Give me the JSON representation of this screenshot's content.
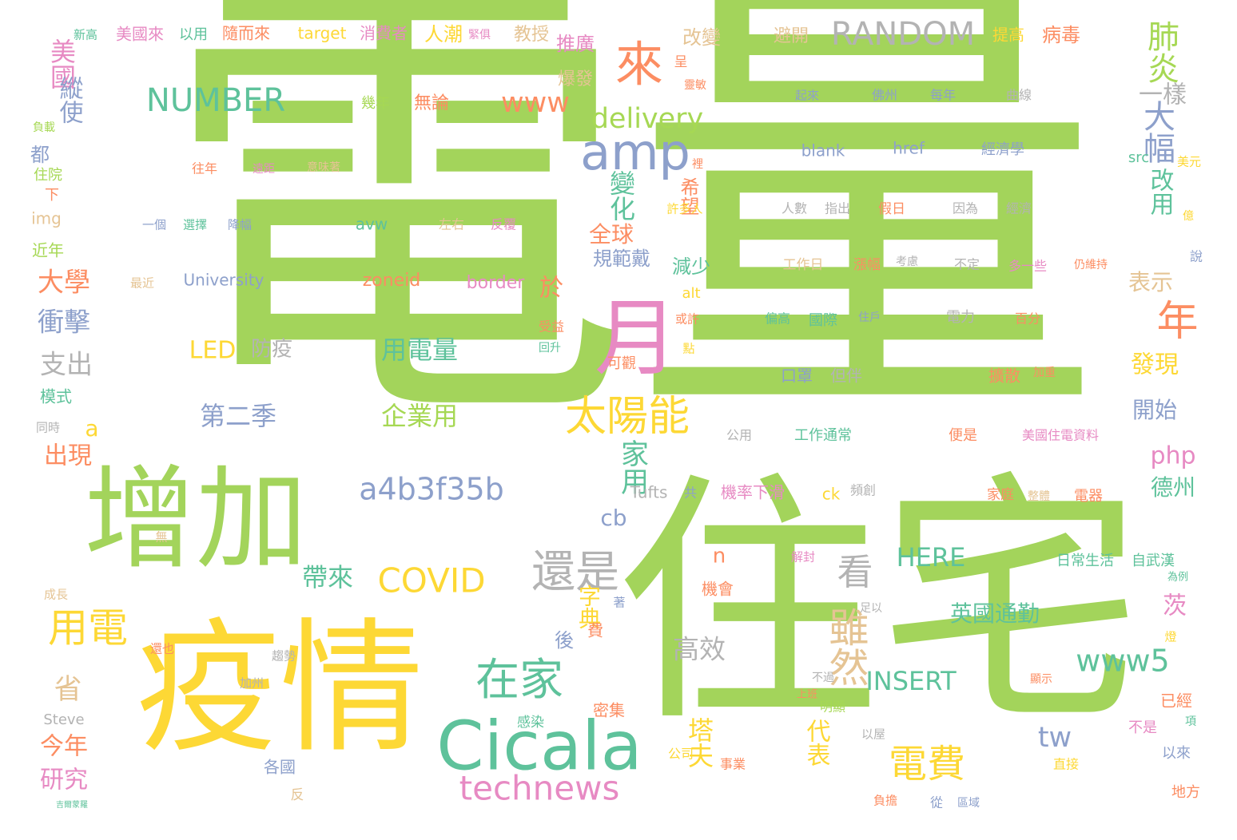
{
  "colors": {
    "green": "#a3d45b",
    "yellow": "#fdd835",
    "teal": "#5ec29b",
    "blue": "#8da0cb",
    "pink": "#e78ac3",
    "orange": "#fc8d62",
    "gray": "#b3b3b3",
    "tan": "#e5c494",
    "lime": "#a6d854"
  },
  "words": [
    {
      "text": "電量",
      "color": "green"
    },
    {
      "text": "住宅",
      "color": "green"
    },
    {
      "text": "疫情",
      "color": "yellow"
    },
    {
      "text": "增加",
      "color": "green"
    },
    {
      "text": "月",
      "color": "pink"
    },
    {
      "text": "Cicala",
      "color": "teal"
    },
    {
      "text": "amp",
      "color": "blue"
    },
    {
      "text": "太陽能",
      "color": "yellow"
    },
    {
      "text": "來",
      "color": "orange"
    },
    {
      "text": "在家",
      "color": "teal"
    },
    {
      "text": "還是",
      "color": "gray"
    },
    {
      "text": "電費",
      "color": "yellow"
    },
    {
      "text": "technews",
      "color": "pink"
    },
    {
      "text": "www5",
      "color": "teal"
    },
    {
      "text": "年",
      "color": "orange"
    },
    {
      "text": "用電",
      "color": "yellow"
    },
    {
      "text": "RANDOM",
      "color": "gray"
    },
    {
      "text": "COVID",
      "color": "yellow"
    },
    {
      "text": "a4b3f35b",
      "color": "blue"
    },
    {
      "text": "雖然",
      "color": "tan"
    },
    {
      "text": "大幅",
      "color": "blue"
    },
    {
      "text": "肺炎",
      "color": "lime"
    },
    {
      "text": "看",
      "color": "gray"
    },
    {
      "text": "NUMBER",
      "color": "teal"
    },
    {
      "text": "www",
      "color": "orange"
    },
    {
      "text": "delivery",
      "color": "lime"
    },
    {
      "text": "INSERT",
      "color": "teal"
    },
    {
      "text": "HERE",
      "color": "teal"
    },
    {
      "text": "家用",
      "color": "teal"
    },
    {
      "text": "變化",
      "color": "teal"
    },
    {
      "text": "高效",
      "color": "gray"
    },
    {
      "text": "tw",
      "color": "blue"
    },
    {
      "text": "塔夫",
      "color": "yellow"
    },
    {
      "text": "帶來",
      "color": "teal"
    },
    {
      "text": "第二季",
      "color": "blue"
    },
    {
      "text": "企業用",
      "color": "lime"
    },
    {
      "text": "用電量",
      "color": "teal"
    },
    {
      "text": "LED",
      "color": "yellow"
    },
    {
      "text": "防疫",
      "color": "gray"
    },
    {
      "text": "美國",
      "color": "pink"
    },
    {
      "text": "大學",
      "color": "orange"
    },
    {
      "text": "衝擊",
      "color": "blue"
    },
    {
      "text": "支出",
      "color": "gray"
    },
    {
      "text": "縱使",
      "color": "blue"
    },
    {
      "text": "出現",
      "color": "orange"
    },
    {
      "text": "今年",
      "color": "orange"
    },
    {
      "text": "研究",
      "color": "pink"
    },
    {
      "text": "省",
      "color": "tan"
    },
    {
      "text": "php",
      "color": "pink"
    },
    {
      "text": "德州",
      "color": "teal"
    },
    {
      "text": "開始",
      "color": "blue"
    },
    {
      "text": "發現",
      "color": "yellow"
    },
    {
      "text": "表示",
      "color": "tan"
    },
    {
      "text": "改用",
      "color": "teal"
    },
    {
      "text": "一樣",
      "color": "gray"
    },
    {
      "text": "英國通勤",
      "color": "teal"
    },
    {
      "text": "代表",
      "color": "yellow"
    },
    {
      "text": "茨",
      "color": "pink"
    },
    {
      "text": "全球",
      "color": "orange"
    },
    {
      "text": "規範戴",
      "color": "blue"
    },
    {
      "text": "減少",
      "color": "teal"
    },
    {
      "text": "於",
      "color": "orange"
    },
    {
      "text": "字典",
      "color": "yellow"
    },
    {
      "text": "後",
      "color": "blue"
    },
    {
      "text": "希望",
      "color": "orange"
    },
    {
      "text": "推廣",
      "color": "pink"
    },
    {
      "text": "爆發",
      "color": "tan"
    },
    {
      "text": "cb",
      "color": "blue"
    },
    {
      "text": "n",
      "color": "orange"
    },
    {
      "text": "a",
      "color": "yellow"
    },
    {
      "text": "改變",
      "color": "tan"
    },
    {
      "text": "避開",
      "color": "tan"
    },
    {
      "text": "病毒",
      "color": "orange"
    },
    {
      "text": "提高",
      "color": "yellow"
    },
    {
      "text": "人潮",
      "color": "yellow"
    },
    {
      "text": "教授",
      "color": "tan"
    },
    {
      "text": "target",
      "color": "yellow"
    },
    {
      "text": "消費者",
      "color": "pink"
    },
    {
      "text": "隨而來",
      "color": "orange"
    },
    {
      "text": "美國來",
      "color": "pink"
    },
    {
      "text": "以用",
      "color": "teal"
    },
    {
      "text": "新高",
      "color": "teal"
    },
    {
      "text": "緊俱",
      "color": "pink"
    },
    {
      "text": "都",
      "color": "blue"
    },
    {
      "text": "無論",
      "color": "orange"
    },
    {
      "text": "幾年",
      "color": "lime"
    },
    {
      "text": "呈",
      "color": "orange"
    },
    {
      "text": "靈敏",
      "color": "orange"
    },
    {
      "text": "zoneid",
      "color": "orange"
    },
    {
      "text": "border",
      "color": "pink"
    },
    {
      "text": "University",
      "color": "blue"
    },
    {
      "text": "avw",
      "color": "teal"
    },
    {
      "text": "左右",
      "color": "tan"
    },
    {
      "text": "反覆",
      "color": "pink"
    },
    {
      "text": "往年",
      "color": "orange"
    },
    {
      "text": "遠距",
      "color": "pink"
    },
    {
      "text": "意味著",
      "color": "tan"
    },
    {
      "text": "一個",
      "color": "blue"
    },
    {
      "text": "選擇",
      "color": "teal"
    },
    {
      "text": "降幅",
      "color": "blue"
    },
    {
      "text": "最近",
      "color": "tan"
    },
    {
      "text": "img",
      "color": "tan"
    },
    {
      "text": "近年",
      "color": "lime"
    },
    {
      "text": "下",
      "color": "orange"
    },
    {
      "text": "住院",
      "color": "lime"
    },
    {
      "text": "負載",
      "color": "lime"
    },
    {
      "text": "模式",
      "color": "teal"
    },
    {
      "text": "同時",
      "color": "gray"
    },
    {
      "text": "無",
      "color": "tan"
    },
    {
      "text": "成長",
      "color": "tan"
    },
    {
      "text": "Steve",
      "color": "gray"
    },
    {
      "text": "吉爾蒙羅",
      "color": "teal"
    },
    {
      "text": "趨勢",
      "color": "gray"
    },
    {
      "text": "加州",
      "color": "gray"
    },
    {
      "text": "還也",
      "color": "orange"
    },
    {
      "text": "反",
      "color": "tan"
    },
    {
      "text": "各國",
      "color": "blue"
    },
    {
      "text": "密集",
      "color": "orange"
    },
    {
      "text": "感染",
      "color": "teal"
    },
    {
      "text": "費",
      "color": "orange"
    },
    {
      "text": "著",
      "color": "blue"
    },
    {
      "text": "機會",
      "color": "orange"
    },
    {
      "text": "alt",
      "color": "yellow"
    },
    {
      "text": "受益",
      "color": "orange"
    },
    {
      "text": "回升",
      "color": "teal"
    },
    {
      "text": "可觀",
      "color": "orange"
    },
    {
      "text": "或許",
      "color": "orange"
    },
    {
      "text": "點",
      "color": "yellow"
    },
    {
      "text": "Tufts",
      "color": "gray"
    },
    {
      "text": "共",
      "color": "blue"
    },
    {
      "text": "機率下滑",
      "color": "pink"
    },
    {
      "text": "ck",
      "color": "yellow"
    },
    {
      "text": "頻創",
      "color": "gray"
    },
    {
      "text": "公用",
      "color": "gray"
    },
    {
      "text": "工作通常",
      "color": "teal"
    },
    {
      "text": "便是",
      "color": "orange"
    },
    {
      "text": "美國住電資料",
      "color": "pink"
    },
    {
      "text": "口罩",
      "color": "blue"
    },
    {
      "text": "但伴",
      "color": "gray"
    },
    {
      "text": "擴散",
      "color": "orange"
    },
    {
      "text": "加重",
      "color": "orange"
    },
    {
      "text": "偏高",
      "color": "teal"
    },
    {
      "text": "國際",
      "color": "teal"
    },
    {
      "text": "住戶",
      "color": "blue"
    },
    {
      "text": "電力",
      "color": "gray"
    },
    {
      "text": "百分",
      "color": "orange"
    },
    {
      "text": "工作日",
      "color": "tan"
    },
    {
      "text": "漲幅",
      "color": "orange"
    },
    {
      "text": "考慮",
      "color": "gray"
    },
    {
      "text": "不定",
      "color": "gray"
    },
    {
      "text": "多一些",
      "color": "pink"
    },
    {
      "text": "仍維持",
      "color": "orange"
    },
    {
      "text": "說",
      "color": "blue"
    },
    {
      "text": "人數",
      "color": "gray"
    },
    {
      "text": "指出",
      "color": "gray"
    },
    {
      "text": "假日",
      "color": "orange"
    },
    {
      "text": "因為",
      "color": "gray"
    },
    {
      "text": "經濟",
      "color": "gray"
    },
    {
      "text": "億",
      "color": "yellow"
    },
    {
      "text": "許多人",
      "color": "yellow"
    },
    {
      "text": "裡",
      "color": "orange"
    },
    {
      "text": "blank",
      "color": "blue"
    },
    {
      "text": "href",
      "color": "blue"
    },
    {
      "text": "經濟學",
      "color": "blue"
    },
    {
      "text": "src",
      "color": "teal"
    },
    {
      "text": "美元",
      "color": "yellow"
    },
    {
      "text": "起來",
      "color": "blue"
    },
    {
      "text": "佛州",
      "color": "blue"
    },
    {
      "text": "每年",
      "color": "blue"
    },
    {
      "text": "曲線",
      "color": "gray"
    },
    {
      "text": "家庭",
      "color": "orange"
    },
    {
      "text": "整體",
      "color": "tan"
    },
    {
      "text": "電器",
      "color": "orange"
    },
    {
      "text": "日常生活",
      "color": "teal"
    },
    {
      "text": "自武漢",
      "color": "teal"
    },
    {
      "text": "為例",
      "color": "teal"
    },
    {
      "text": "解封",
      "color": "pink"
    },
    {
      "text": "足以",
      "color": "gray"
    },
    {
      "text": "燈",
      "color": "yellow"
    },
    {
      "text": "顯示",
      "color": "orange"
    },
    {
      "text": "不過",
      "color": "gray"
    },
    {
      "text": "明顯",
      "color": "lime"
    },
    {
      "text": "上班",
      "color": "orange"
    },
    {
      "text": "以屋",
      "color": "gray"
    },
    {
      "text": "已經",
      "color": "orange"
    },
    {
      "text": "不是",
      "color": "pink"
    },
    {
      "text": "項",
      "color": "teal"
    },
    {
      "text": "以來",
      "color": "blue"
    },
    {
      "text": "直接",
      "color": "yellow"
    },
    {
      "text": "事業",
      "color": "orange"
    },
    {
      "text": "公司",
      "color": "yellow"
    },
    {
      "text": "負擔",
      "color": "orange"
    },
    {
      "text": "從",
      "color": "blue"
    },
    {
      "text": "區域",
      "color": "blue"
    },
    {
      "text": "地方",
      "color": "orange"
    }
  ]
}
